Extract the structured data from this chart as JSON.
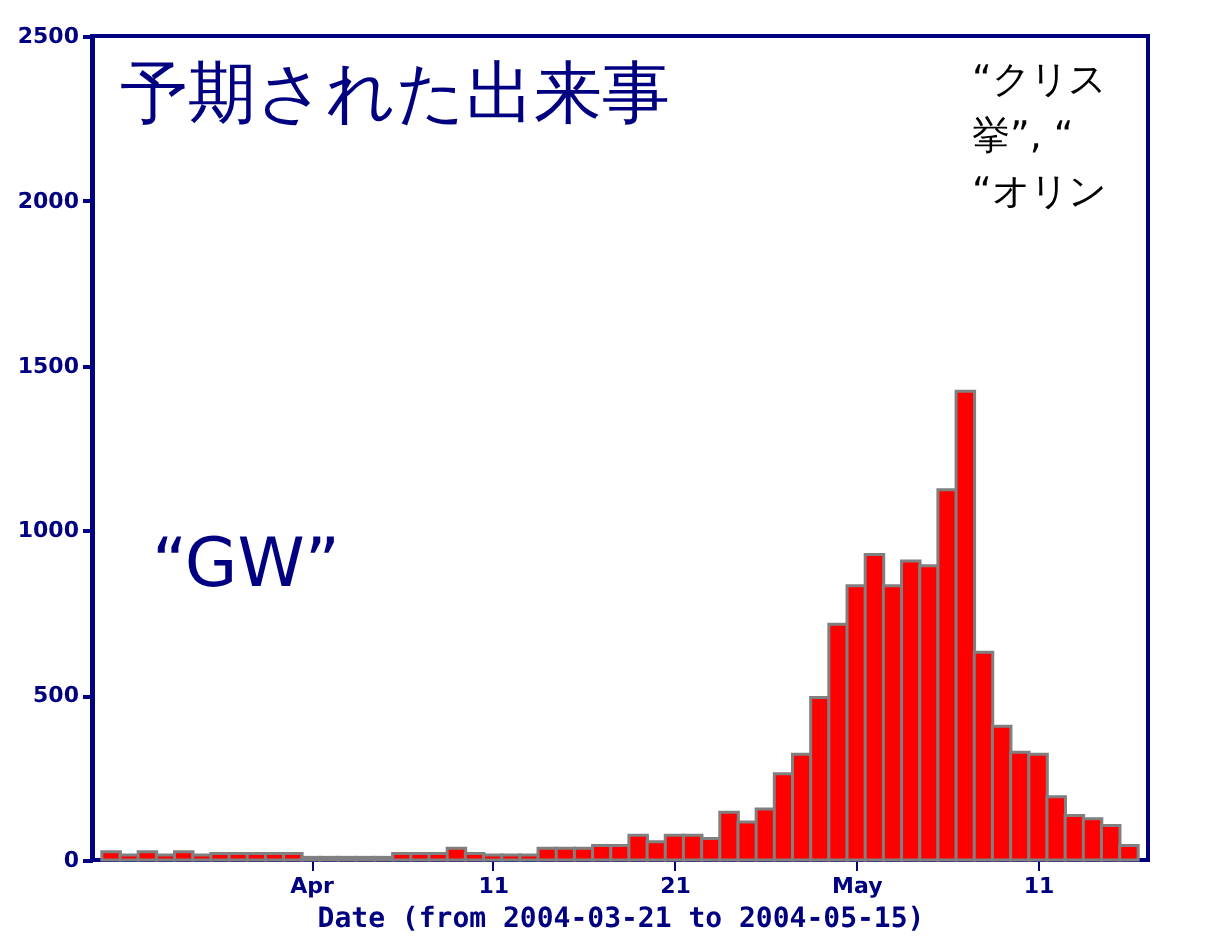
{
  "chart_data": {
    "type": "bar",
    "title": "予期された出来事",
    "xlabel": "Date (from 2004-03-21 to 2004-05-15)",
    "x": [
      "2004-03-21",
      "2004-03-22",
      "2004-03-23",
      "2004-03-24",
      "2004-03-25",
      "2004-03-26",
      "2004-03-27",
      "2004-03-28",
      "2004-03-29",
      "2004-03-30",
      "2004-03-31",
      "2004-04-01",
      "2004-04-02",
      "2004-04-03",
      "2004-04-04",
      "2004-04-05",
      "2004-04-06",
      "2004-04-07",
      "2004-04-08",
      "2004-04-09",
      "2004-04-10",
      "2004-04-11",
      "2004-04-12",
      "2004-04-13",
      "2004-04-14",
      "2004-04-15",
      "2004-04-16",
      "2004-04-17",
      "2004-04-18",
      "2004-04-19",
      "2004-04-20",
      "2004-04-21",
      "2004-04-22",
      "2004-04-23",
      "2004-04-24",
      "2004-04-25",
      "2004-04-26",
      "2004-04-27",
      "2004-04-28",
      "2004-04-29",
      "2004-04-30",
      "2004-05-01",
      "2004-05-02",
      "2004-05-03",
      "2004-05-04",
      "2004-05-05",
      "2004-05-06",
      "2004-05-07",
      "2004-05-08",
      "2004-05-09",
      "2004-05-10",
      "2004-05-11",
      "2004-05-12",
      "2004-05-13",
      "2004-05-14",
      "2004-05-15",
      "2004-05-16"
    ],
    "values": [
      25,
      15,
      25,
      15,
      25,
      15,
      20,
      20,
      20,
      20,
      20,
      8,
      8,
      8,
      8,
      8,
      20,
      20,
      20,
      36,
      20,
      15,
      15,
      15,
      36,
      36,
      36,
      44,
      44,
      75,
      55,
      75,
      75,
      65,
      145,
      115,
      155,
      262,
      321,
      493,
      715,
      832,
      927,
      832,
      907,
      893,
      1123,
      1422,
      630,
      406,
      327,
      321,
      192,
      135,
      125,
      105,
      44
    ],
    "color": "#ff0000",
    "xlim": [
      "2004-03-20T12:00",
      "2004-05-16T12:00"
    ],
    "xticks": [
      {
        "value": "2004-04-01",
        "label": "Apr"
      },
      {
        "value": "2004-04-11",
        "label": "11"
      },
      {
        "value": "2004-04-21",
        "label": "21"
      },
      {
        "value": "2004-05-01",
        "label": "May"
      },
      {
        "value": "2004-05-11",
        "label": "11"
      }
    ],
    "ylim": [
      0,
      2500
    ],
    "yticks": [
      0,
      500,
      1000,
      1500,
      2000,
      2500
    ],
    "grid": false,
    "annotations": [
      "“GW”",
      "“クリス",
      "挙”, “",
      "“オリン"
    ]
  }
}
